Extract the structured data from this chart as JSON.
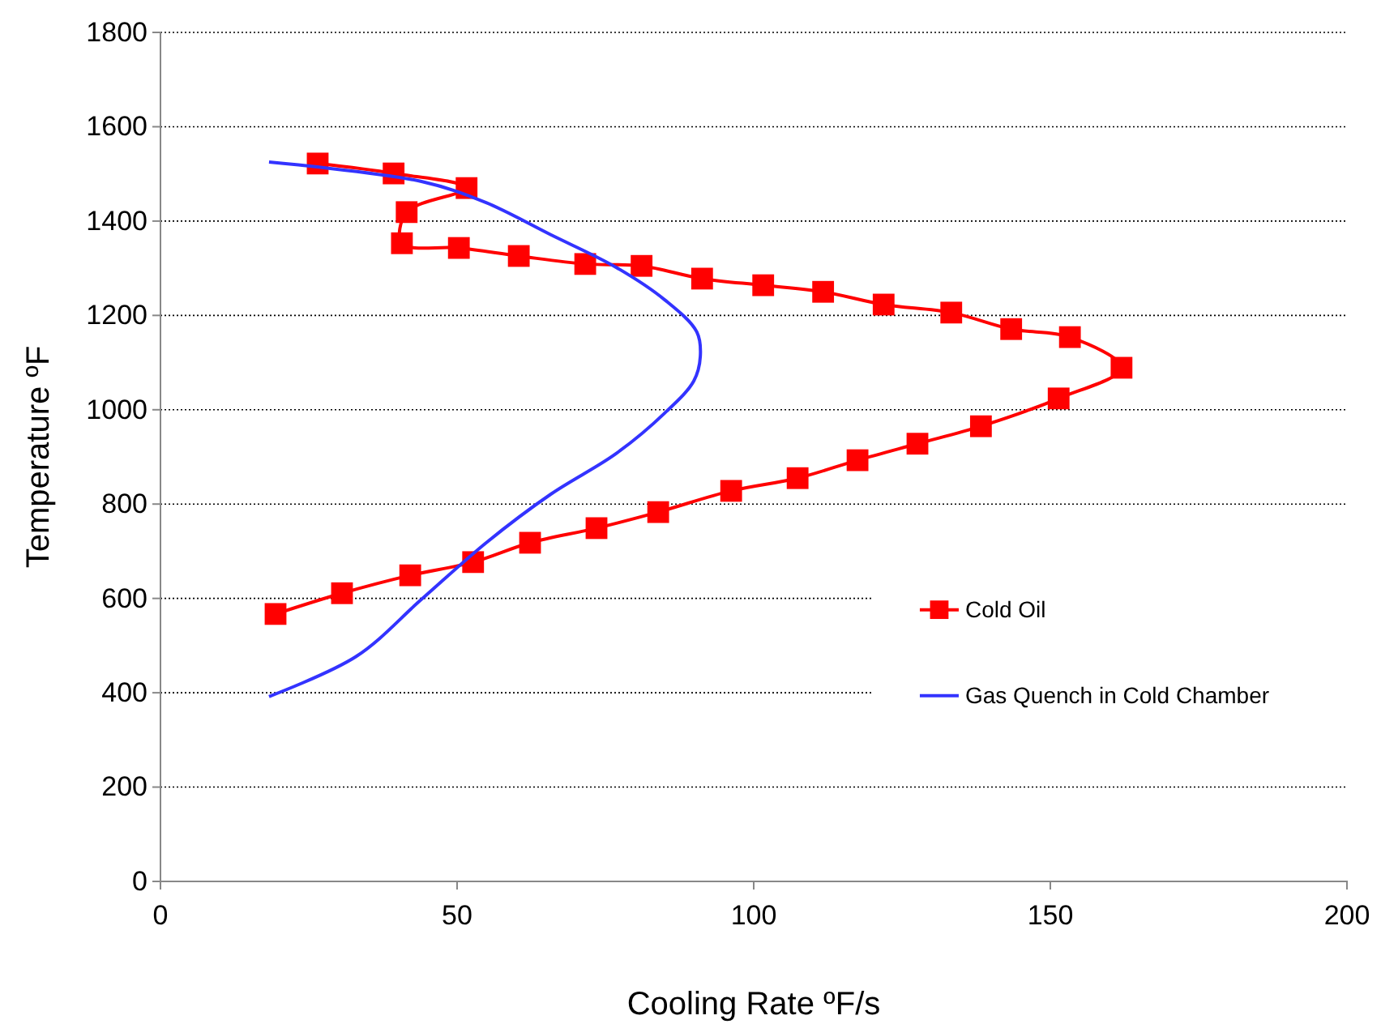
{
  "chart_data": {
    "type": "line",
    "xlabel": "Cooling Rate ºF/s",
    "ylabel": "Temperature ºF",
    "xlim": [
      0,
      200
    ],
    "xticks": [
      0,
      50,
      100,
      150,
      200
    ],
    "ylim": [
      0,
      1800
    ],
    "yticks": [
      0,
      200,
      400,
      600,
      800,
      1000,
      1200,
      1400,
      1600,
      1800
    ],
    "grid": "y",
    "legend": "right",
    "line_style": "solid",
    "series": [
      {
        "name": "Cold Oil",
        "color": "#ff0000",
        "marker": "square",
        "x": [
          26.5,
          39.3,
          51.6,
          41.5,
          40.7,
          50.3,
          60.4,
          71.6,
          81.1,
          91.3,
          101.6,
          111.7,
          121.9,
          133.3,
          143.4,
          153.3,
          162,
          151.4,
          138.3,
          127.6,
          117.5,
          107.4,
          96.2,
          83.9,
          73.5,
          62.3,
          52.7,
          42.1,
          30.6,
          19.4
        ],
        "values": [
          1522,
          1501,
          1470,
          1419,
          1353,
          1343,
          1326,
          1309,
          1305,
          1278,
          1264,
          1250,
          1223,
          1206,
          1171,
          1154,
          1089,
          1024,
          965,
          928,
          893,
          855,
          828,
          783,
          749,
          718,
          677,
          649,
          611,
          567
        ]
      },
      {
        "name": "Gas Quench in Cold Chamber",
        "color": "#3333ff",
        "marker": "none",
        "x": [
          18.3,
          44,
          54.9,
          65.8,
          76.8,
          85,
          90.4,
          91,
          89.9,
          85,
          76.8,
          65.8,
          54.9,
          44,
          33,
          18.3
        ],
        "values": [
          1525,
          1484,
          1439,
          1371,
          1302,
          1233,
          1165,
          1113,
          1061,
          993,
          907,
          821,
          718,
          598,
          477,
          392
        ]
      }
    ]
  }
}
